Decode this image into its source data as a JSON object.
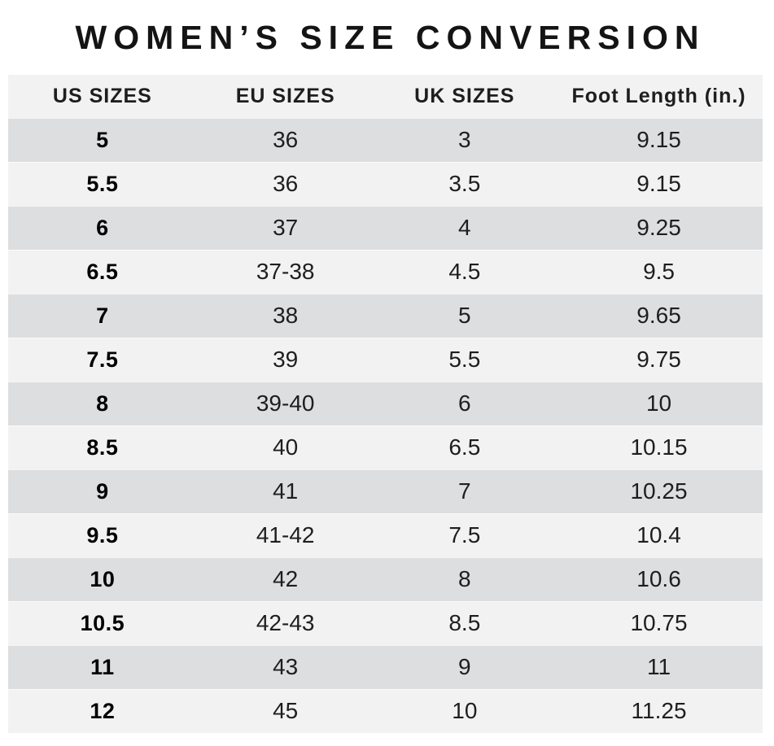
{
  "chart_data": {
    "type": "table",
    "title": "WOMEN’S SIZE CONVERSION",
    "columns": [
      "US SIZES",
      "EU SIZES",
      "UK SIZES",
      "Foot Length (in.)"
    ],
    "rows": [
      [
        "5",
        "36",
        "3",
        "9.15"
      ],
      [
        "5.5",
        "36",
        "3.5",
        "9.15"
      ],
      [
        "6",
        "37",
        "4",
        "9.25"
      ],
      [
        "6.5",
        "37-38",
        "4.5",
        "9.5"
      ],
      [
        "7",
        "38",
        "5",
        "9.65"
      ],
      [
        "7.5",
        "39",
        "5.5",
        "9.75"
      ],
      [
        "8",
        "39-40",
        "6",
        "10"
      ],
      [
        "8.5",
        "40",
        "6.5",
        "10.15"
      ],
      [
        "9",
        "41",
        "7",
        "10.25"
      ],
      [
        "9.5",
        "41-42",
        "7.5",
        "10.4"
      ],
      [
        "10",
        "42",
        "8",
        "10.6"
      ],
      [
        "10.5",
        "42-43",
        "8.5",
        "10.75"
      ],
      [
        "11",
        "43",
        "9",
        "11"
      ],
      [
        "12",
        "45",
        "10",
        "11.25"
      ]
    ]
  },
  "colors": {
    "row_dark": "#dcdee0",
    "row_light": "#f2f2f3",
    "header_bg": "#f2f2f3",
    "text": "#1e1e1e",
    "title_text": "#141414",
    "page_bg": "#ffffff"
  }
}
